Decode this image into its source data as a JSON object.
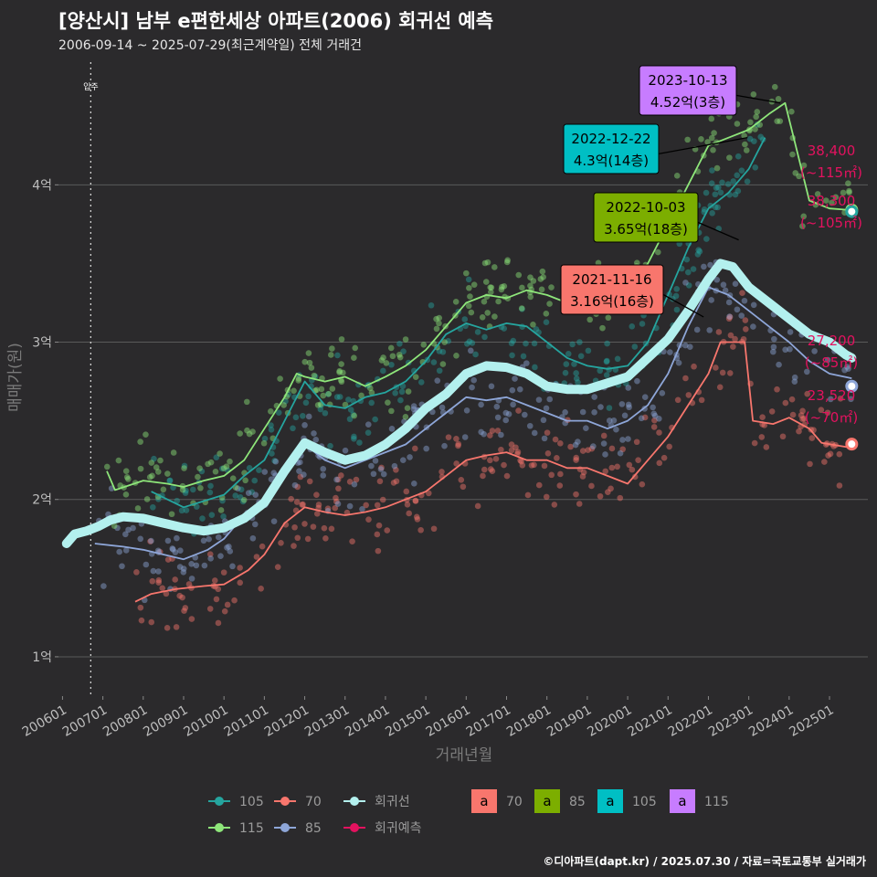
{
  "header": {
    "title": "[양산시] 남부 e편한세상 아파트(2006) 회귀선 예측",
    "subtitle": "2006-09-14 ~ 2025-07-29(최근계약일) 전체 거래건"
  },
  "caption": "©디아파트(dapt.kr) / 2025.07.30 / 자료=국토교통부 실거래가",
  "move_in_label": "입주",
  "colors": {
    "background": "#2b2a2c",
    "grid": "#5a5a5a",
    "s105": "#25a59f",
    "s70": "#f8766d",
    "s85": "#8ea6d8",
    "s115": "#8ee67a",
    "regression": "#b3f0ee",
    "forecast": "#e3125f",
    "ann70": "#f8766d",
    "ann85": "#7cae00",
    "ann105": "#00bfc4",
    "ann115": "#c77cff"
  },
  "chart_data": {
    "type": "line",
    "title": "[양산시] 남부 e편한세상 아파트(2006) 회귀선 예측",
    "xlabel": "거래년월",
    "ylabel": "매매가(원)",
    "x_ticks": [
      "200601",
      "200701",
      "200801",
      "200901",
      "201001",
      "201101",
      "201201",
      "201301",
      "201401",
      "201501",
      "201601",
      "201701",
      "201801",
      "201901",
      "202001",
      "202101",
      "202201",
      "202301",
      "202401",
      "202501"
    ],
    "y_ticks": [
      {
        "value": 10000,
        "label": "1억"
      },
      {
        "value": 20000,
        "label": "2억"
      },
      {
        "value": 30000,
        "label": "3억"
      },
      {
        "value": 40000,
        "label": "4억"
      }
    ],
    "xlim": [
      2005.9,
      2025.95
    ],
    "ylim": [
      7500,
      47800
    ],
    "move_in": 2006.7,
    "series": [
      {
        "name": "105",
        "key": "s105",
        "points": [
          [
            2008.2,
            20500
          ],
          [
            2009.0,
            19500
          ],
          [
            2010.0,
            20300
          ],
          [
            2010.5,
            21500
          ],
          [
            2011.0,
            22500
          ],
          [
            2011.5,
            25000
          ],
          [
            2012.0,
            27500
          ],
          [
            2012.5,
            26000
          ],
          [
            2013.0,
            25800
          ],
          [
            2013.5,
            26500
          ],
          [
            2014.0,
            26800
          ],
          [
            2014.5,
            27500
          ],
          [
            2015.0,
            28800
          ],
          [
            2015.5,
            30500
          ],
          [
            2016.0,
            31200
          ],
          [
            2016.5,
            30800
          ],
          [
            2017.0,
            31200
          ],
          [
            2017.5,
            31000
          ],
          [
            2018.0,
            30000
          ],
          [
            2018.5,
            29000
          ],
          [
            2019.0,
            28500
          ],
          [
            2019.5,
            28300
          ],
          [
            2020.0,
            28500
          ],
          [
            2020.5,
            30000
          ],
          [
            2021.0,
            33000
          ],
          [
            2021.5,
            36000
          ],
          [
            2022.0,
            38500
          ],
          [
            2022.5,
            39500
          ],
          [
            2023.0,
            41000
          ],
          [
            2023.4,
            43000
          ]
        ]
      },
      {
        "name": "70",
        "key": "s70",
        "points": [
          [
            2007.8,
            13500
          ],
          [
            2008.2,
            14000
          ],
          [
            2008.8,
            14300
          ],
          [
            2009.5,
            14500
          ],
          [
            2010.0,
            14600
          ],
          [
            2010.6,
            15500
          ],
          [
            2011.0,
            16500
          ],
          [
            2011.5,
            18500
          ],
          [
            2012.0,
            19500
          ],
          [
            2012.5,
            19200
          ],
          [
            2013.0,
            19000
          ],
          [
            2013.5,
            19200
          ],
          [
            2014.0,
            19500
          ],
          [
            2014.5,
            20000
          ],
          [
            2015.0,
            20500
          ],
          [
            2015.5,
            21500
          ],
          [
            2016.0,
            22500
          ],
          [
            2016.5,
            22800
          ],
          [
            2017.0,
            23000
          ],
          [
            2017.5,
            22500
          ],
          [
            2018.0,
            22500
          ],
          [
            2018.5,
            22000
          ],
          [
            2019.0,
            22000
          ],
          [
            2019.5,
            21500
          ],
          [
            2020.0,
            21000
          ],
          [
            2020.5,
            22500
          ],
          [
            2021.0,
            24000
          ],
          [
            2021.5,
            26000
          ],
          [
            2022.0,
            28000
          ],
          [
            2022.3,
            30000
          ],
          [
            2022.9,
            30000
          ],
          [
            2023.1,
            25000
          ],
          [
            2023.6,
            24800
          ],
          [
            2024.0,
            25200
          ],
          [
            2024.5,
            24500
          ],
          [
            2024.8,
            23600
          ],
          [
            2025.5,
            23300
          ]
        ]
      },
      {
        "name": "85",
        "key": "s85",
        "points": [
          [
            2006.8,
            17200
          ],
          [
            2007.5,
            17000
          ],
          [
            2008.0,
            16800
          ],
          [
            2008.5,
            16500
          ],
          [
            2009.0,
            16200
          ],
          [
            2009.6,
            16800
          ],
          [
            2010.0,
            17500
          ],
          [
            2010.5,
            19000
          ],
          [
            2011.0,
            20000
          ],
          [
            2011.5,
            21500
          ],
          [
            2012.0,
            23500
          ],
          [
            2012.5,
            22500
          ],
          [
            2013.0,
            22000
          ],
          [
            2013.5,
            22500
          ],
          [
            2014.0,
            23000
          ],
          [
            2014.5,
            23500
          ],
          [
            2015.0,
            24500
          ],
          [
            2015.5,
            25500
          ],
          [
            2016.0,
            26500
          ],
          [
            2016.5,
            26300
          ],
          [
            2017.0,
            26500
          ],
          [
            2017.5,
            26000
          ],
          [
            2018.0,
            25500
          ],
          [
            2018.5,
            25000
          ],
          [
            2019.0,
            25000
          ],
          [
            2019.5,
            24500
          ],
          [
            2020.0,
            25000
          ],
          [
            2020.5,
            26000
          ],
          [
            2021.0,
            28000
          ],
          [
            2021.5,
            31000
          ],
          [
            2022.0,
            33500
          ],
          [
            2022.5,
            33000
          ],
          [
            2023.0,
            32000
          ],
          [
            2023.5,
            31000
          ],
          [
            2024.0,
            30000
          ],
          [
            2024.5,
            28800
          ],
          [
            2025.0,
            28000
          ],
          [
            2025.55,
            27700
          ]
        ]
      },
      {
        "name": "115",
        "key": "s115",
        "points": [
          [
            2007.1,
            21800
          ],
          [
            2007.3,
            20600
          ],
          [
            2008.0,
            21200
          ],
          [
            2008.6,
            21000
          ],
          [
            2009.0,
            20800
          ],
          [
            2009.5,
            21200
          ],
          [
            2010.0,
            21500
          ],
          [
            2010.5,
            22500
          ],
          [
            2011.0,
            24500
          ],
          [
            2011.5,
            26500
          ],
          [
            2011.8,
            28000
          ],
          [
            2012.0,
            27800
          ],
          [
            2012.5,
            27500
          ],
          [
            2013.0,
            27800
          ],
          [
            2013.5,
            27200
          ],
          [
            2014.0,
            27800
          ],
          [
            2014.5,
            28500
          ],
          [
            2015.0,
            29500
          ],
          [
            2015.5,
            31000
          ],
          [
            2016.0,
            32500
          ],
          [
            2016.5,
            33000
          ],
          [
            2017.0,
            32800
          ],
          [
            2017.5,
            33300
          ],
          [
            2018.0,
            33000
          ],
          [
            2018.5,
            32500
          ],
          [
            2019.0,
            32300
          ],
          [
            2019.5,
            32800
          ],
          [
            2020.0,
            33500
          ],
          [
            2020.5,
            35000
          ],
          [
            2021.0,
            37500
          ],
          [
            2021.5,
            40000
          ],
          [
            2022.0,
            42500
          ],
          [
            2022.5,
            43000
          ],
          [
            2023.0,
            43500
          ],
          [
            2023.5,
            44500
          ],
          [
            2023.9,
            45200
          ],
          [
            2024.5,
            39000
          ],
          [
            2025.0,
            38500
          ],
          [
            2025.5,
            38400
          ]
        ]
      }
    ],
    "regression": {
      "name": "회귀선",
      "key": "regression",
      "points": [
        [
          2006.1,
          17200
        ],
        [
          2006.3,
          17800
        ],
        [
          2006.6,
          18000
        ],
        [
          2006.9,
          18300
        ],
        [
          2007.2,
          18700
        ],
        [
          2007.5,
          18900
        ],
        [
          2008.0,
          18800
        ],
        [
          2008.5,
          18500
        ],
        [
          2009.0,
          18200
        ],
        [
          2009.5,
          18000
        ],
        [
          2010.0,
          18200
        ],
        [
          2010.5,
          18800
        ],
        [
          2011.0,
          19800
        ],
        [
          2011.5,
          21800
        ],
        [
          2012.0,
          23600
        ],
        [
          2012.5,
          23000
        ],
        [
          2013.0,
          22500
        ],
        [
          2013.5,
          22800
        ],
        [
          2014.0,
          23500
        ],
        [
          2014.5,
          24500
        ],
        [
          2015.0,
          25800
        ],
        [
          2015.5,
          26700
        ],
        [
          2016.0,
          28000
        ],
        [
          2016.5,
          28500
        ],
        [
          2017.0,
          28400
        ],
        [
          2017.5,
          28000
        ],
        [
          2018.0,
          27200
        ],
        [
          2018.5,
          27000
        ],
        [
          2019.0,
          27000
        ],
        [
          2019.5,
          27400
        ],
        [
          2020.0,
          27800
        ],
        [
          2020.5,
          29000
        ],
        [
          2021.0,
          30200
        ],
        [
          2021.5,
          32000
        ],
        [
          2022.0,
          34000
        ],
        [
          2022.3,
          35000
        ],
        [
          2022.6,
          34800
        ],
        [
          2023.0,
          33500
        ],
        [
          2023.5,
          32500
        ],
        [
          2024.0,
          31500
        ],
        [
          2024.5,
          30500
        ],
        [
          2025.0,
          30000
        ],
        [
          2025.4,
          29200
        ],
        [
          2025.55,
          29000
        ]
      ]
    },
    "end_labels": [
      {
        "value": 38400,
        "text": "38,400",
        "area": "(~115㎡)",
        "key": "s115"
      },
      {
        "value": 38300,
        "text": "38,300",
        "area": "(~105㎡)",
        "key": "s105"
      },
      {
        "value": 27200,
        "text": "27,200",
        "area": "(~85㎡)",
        "key": "s85"
      },
      {
        "value": 23520,
        "text": "23,520",
        "area": "(~70㎡)",
        "key": "s70"
      }
    ],
    "annotations": [
      {
        "date": "2023-10-13",
        "value": "4.52억(3층)",
        "key": "ann115",
        "x": 2023.78,
        "y": 45200
      },
      {
        "date": "2022-12-22",
        "value": "4.3억(14층)",
        "key": "ann105",
        "x": 2022.97,
        "y": 43000
      },
      {
        "date": "2022-10-03",
        "value": "3.65억(18층)",
        "key": "ann85",
        "x": 2022.75,
        "y": 36500
      },
      {
        "date": "2021-11-16",
        "value": "3.16억(16층)",
        "key": "ann70",
        "x": 2021.88,
        "y": 31600
      }
    ],
    "legend": [
      {
        "label": "105",
        "key": "s105",
        "kind": "line"
      },
      {
        "label": "70",
        "key": "s70",
        "kind": "line"
      },
      {
        "label": "회귀선",
        "key": "regression",
        "kind": "line"
      },
      {
        "label": "115",
        "key": "s115",
        "kind": "line"
      },
      {
        "label": "85",
        "key": "s85",
        "kind": "line"
      },
      {
        "label": "회귀예측",
        "key": "forecast",
        "kind": "line"
      },
      {
        "label": "70",
        "key": "ann70",
        "kind": "box"
      },
      {
        "label": "85",
        "key": "ann85",
        "kind": "box"
      },
      {
        "label": "105",
        "key": "ann105",
        "kind": "box"
      },
      {
        "label": "115",
        "key": "ann115",
        "kind": "box"
      }
    ],
    "legend_position": "bottom",
    "grid": true
  }
}
